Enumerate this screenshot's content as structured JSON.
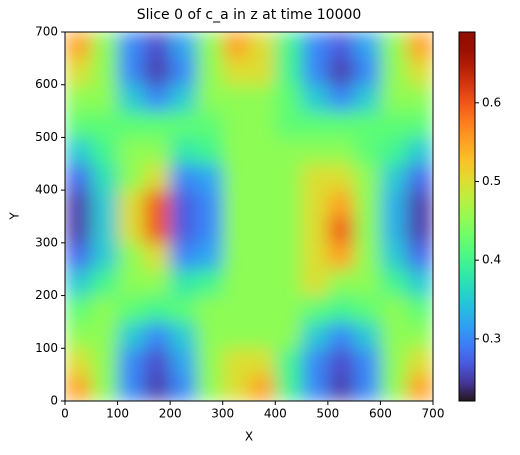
{
  "chart_data": {
    "type": "heatmap",
    "title": "Slice 0 of c_a in z at time 10000",
    "x_label": "X",
    "y_label": "Y",
    "xlim": [
      0,
      700
    ],
    "ylim": [
      0,
      700
    ],
    "xticks": [
      0,
      100,
      200,
      300,
      400,
      500,
      600,
      700
    ],
    "yticks": [
      0,
      100,
      200,
      300,
      400,
      500,
      600,
      700
    ],
    "colormap": "turbo",
    "clim": [
      0.221,
      0.69
    ],
    "cticks": [
      0.3,
      0.4,
      0.5,
      0.6
    ],
    "z": [
      [
        0.55,
        0.45,
        0.3,
        0.25,
        0.3,
        0.45,
        0.5,
        0.55,
        0.4,
        0.3,
        0.25,
        0.3,
        0.45,
        0.55
      ],
      [
        0.5,
        0.45,
        0.3,
        0.26,
        0.32,
        0.45,
        0.5,
        0.5,
        0.4,
        0.3,
        0.26,
        0.3,
        0.45,
        0.5
      ],
      [
        0.45,
        0.45,
        0.35,
        0.3,
        0.35,
        0.45,
        0.45,
        0.45,
        0.45,
        0.35,
        0.3,
        0.35,
        0.45,
        0.45
      ],
      [
        0.42,
        0.45,
        0.42,
        0.4,
        0.42,
        0.45,
        0.45,
        0.45,
        0.45,
        0.42,
        0.4,
        0.42,
        0.45,
        0.42
      ],
      [
        0.35,
        0.4,
        0.45,
        0.45,
        0.38,
        0.4,
        0.45,
        0.45,
        0.45,
        0.5,
        0.45,
        0.45,
        0.4,
        0.35
      ],
      [
        0.28,
        0.35,
        0.45,
        0.5,
        0.3,
        0.32,
        0.45,
        0.45,
        0.45,
        0.5,
        0.55,
        0.45,
        0.35,
        0.28
      ],
      [
        0.25,
        0.35,
        0.5,
        0.6,
        0.27,
        0.3,
        0.45,
        0.45,
        0.45,
        0.5,
        0.6,
        0.45,
        0.33,
        0.25
      ],
      [
        0.25,
        0.35,
        0.5,
        0.6,
        0.27,
        0.3,
        0.45,
        0.45,
        0.45,
        0.5,
        0.55,
        0.45,
        0.33,
        0.25
      ],
      [
        0.28,
        0.37,
        0.45,
        0.5,
        0.3,
        0.32,
        0.45,
        0.45,
        0.45,
        0.5,
        0.5,
        0.45,
        0.35,
        0.28
      ],
      [
        0.35,
        0.4,
        0.45,
        0.45,
        0.38,
        0.4,
        0.45,
        0.45,
        0.45,
        0.45,
        0.45,
        0.42,
        0.4,
        0.35
      ],
      [
        0.42,
        0.42,
        0.42,
        0.42,
        0.42,
        0.42,
        0.45,
        0.45,
        0.42,
        0.42,
        0.42,
        0.42,
        0.42,
        0.42
      ],
      [
        0.45,
        0.45,
        0.35,
        0.3,
        0.35,
        0.45,
        0.45,
        0.45,
        0.42,
        0.35,
        0.3,
        0.35,
        0.45,
        0.45
      ],
      [
        0.5,
        0.45,
        0.3,
        0.25,
        0.3,
        0.45,
        0.5,
        0.5,
        0.4,
        0.3,
        0.25,
        0.3,
        0.45,
        0.5
      ],
      [
        0.55,
        0.45,
        0.3,
        0.26,
        0.32,
        0.45,
        0.55,
        0.5,
        0.4,
        0.3,
        0.27,
        0.32,
        0.45,
        0.55
      ]
    ]
  }
}
